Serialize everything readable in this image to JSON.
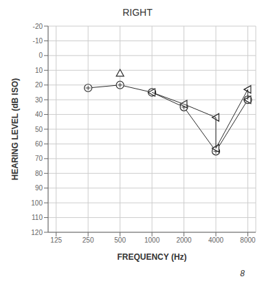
{
  "chart_data": {
    "type": "scatter",
    "title": "RIGHT",
    "xlabel": "FREQUENCY (Hz)",
    "ylabel": "HEARING LEVEL (dB ISO)",
    "log": "x",
    "xlim": [
      105,
      9500
    ],
    "xticks": [
      125,
      250,
      500,
      1000,
      2000,
      4000,
      8000
    ],
    "ylim": [
      120,
      -20
    ],
    "yticks": [
      -20,
      -10,
      0,
      10,
      20,
      30,
      40,
      50,
      60,
      70,
      80,
      90,
      100,
      110,
      120
    ],
    "grid": true,
    "annotations": [
      "8"
    ],
    "series": [
      {
        "x": [
          250,
          500,
          1000,
          2000,
          4000,
          8000
        ],
        "values": [
          22,
          20,
          25,
          35,
          65,
          30
        ],
        "color": "#2a2a2a",
        "marker": "circle-plus",
        "line_style": "solid"
      },
      {
        "x": [
          500
        ],
        "values": [
          12
        ],
        "color": "#2a2a2a",
        "marker": "triangle-up",
        "line_style": "none"
      },
      {
        "x": [
          1000,
          2000,
          4000,
          8000
        ],
        "values": [
          25,
          33,
          42,
          23
        ],
        "color": "#2a2a2a",
        "marker": "triangle-left",
        "line_style": "none"
      },
      {
        "x": [
          4000,
          8000
        ],
        "values": [
          63,
          30
        ],
        "color": "#2a2a2a",
        "marker": "triangle-left",
        "line_style": "none"
      },
      {
        "x": [
          1000,
          2000,
          4000,
          4000,
          8000,
          8000
        ],
        "values": [
          25,
          33,
          42,
          63,
          23,
          30
        ],
        "color": "#2a2a2a",
        "marker": "none",
        "line_style": "solid"
      }
    ]
  }
}
